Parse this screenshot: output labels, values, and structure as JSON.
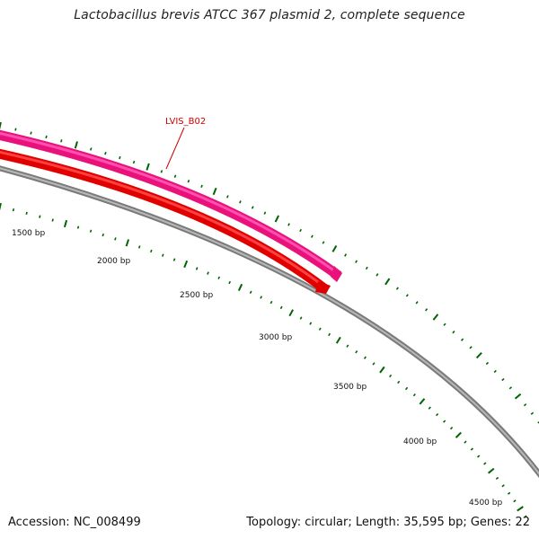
{
  "title": "Lactobacillus brevis ATCC 367 plasmid 2, complete sequence",
  "accession": "Accession: NC_008499",
  "summary": "Topology: circular; Length: 35,595 bp; Genes: 22",
  "colors": {
    "forward_gene": "#ff1493",
    "reverse_gene": "#ff0000",
    "backbone": "#808080",
    "tick": "#006400",
    "label": "#d00000"
  },
  "gene_label": "LVIS_B02",
  "scale_labels": [
    "1500 bp",
    "2000 bp",
    "2500 bp",
    "3000 bp",
    "3500 bp",
    "4000 bp",
    "4500 bp"
  ]
}
